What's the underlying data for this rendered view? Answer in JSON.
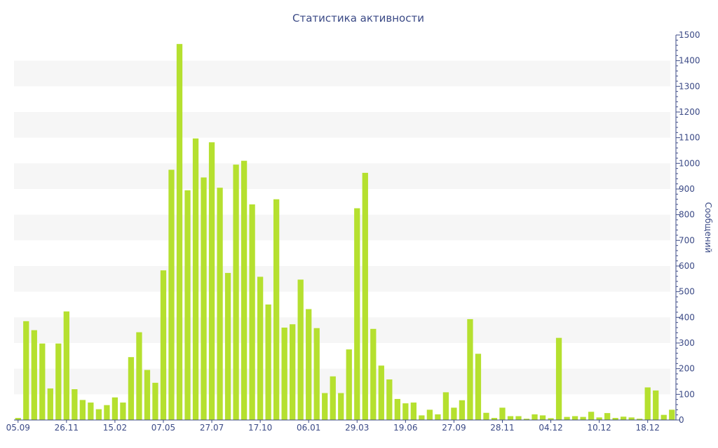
{
  "chart_data": {
    "type": "bar",
    "title": "Статистика активности",
    "xlabel": "",
    "ylabel": "Сообщений",
    "ylim": [
      0,
      1500
    ],
    "y_axis_side": "right",
    "y_ticks": [
      0,
      100,
      200,
      300,
      400,
      500,
      600,
      700,
      800,
      900,
      1000,
      1100,
      1200,
      1300,
      1400,
      1500
    ],
    "grid": "alternating horizontal bands",
    "bar_color": "#b5e02f",
    "band_color": "#f6f6f6",
    "text_color": "#3b4a86",
    "x_tick_labels": [
      "05.09",
      "26.11",
      "15.02",
      "07.05",
      "27.07",
      "17.10",
      "06.01",
      "29.03",
      "19.06",
      "27.09",
      "28.11",
      "04.12",
      "10.12",
      "18.12"
    ],
    "x_tick_category_index": [
      0,
      6,
      12,
      18,
      24,
      30,
      36,
      42,
      48,
      54,
      60,
      66,
      72,
      78
    ],
    "values": [
      8,
      385,
      350,
      298,
      123,
      298,
      423,
      120,
      78,
      68,
      42,
      58,
      88,
      68,
      245,
      342,
      195,
      145,
      583,
      975,
      1465,
      895,
      1097,
      945,
      1082,
      905,
      573,
      995,
      1010,
      840,
      558,
      450,
      860,
      360,
      373,
      547,
      432,
      358,
      105,
      170,
      105,
      275,
      825,
      963,
      355,
      212,
      158,
      82,
      65,
      68,
      18,
      40,
      22,
      108,
      48,
      77,
      393,
      258,
      28,
      8,
      48,
      15,
      15,
      5,
      22,
      18,
      7,
      320,
      12,
      15,
      12,
      32,
      10,
      27,
      8,
      13,
      10,
      5,
      127,
      115,
      20,
      40
    ]
  }
}
